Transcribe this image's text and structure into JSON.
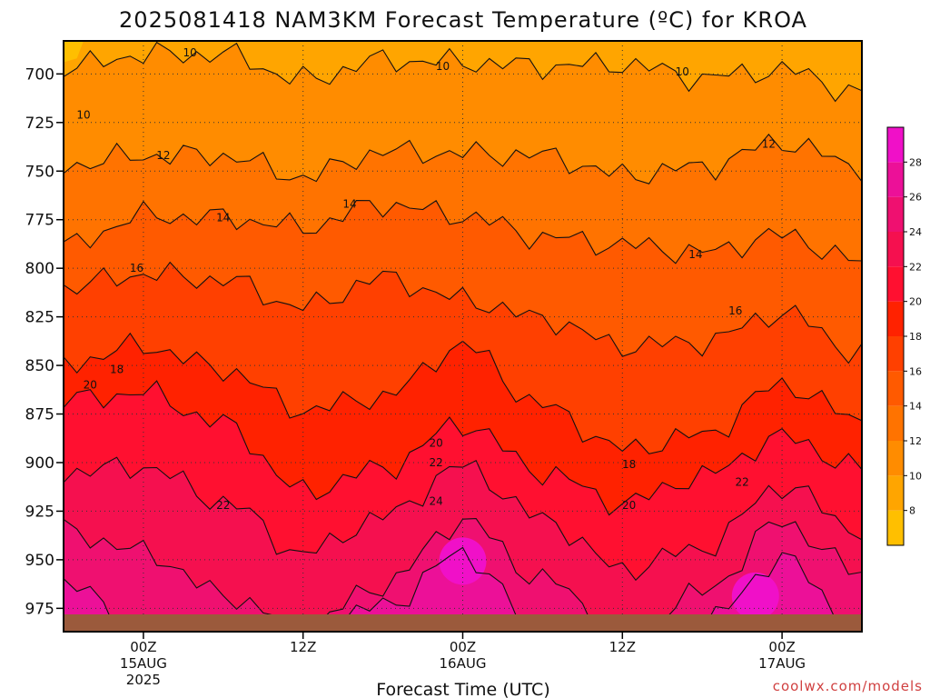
{
  "chart_data": {
    "type": "heatmap",
    "title": "2025081418 NAM3KM Forecast Temperature (ºC) for KROA",
    "xlabel": "Forecast Time (UTC)",
    "ylabel": "",
    "credit": "coolwx.com/models",
    "y_axis": {
      "ticks": [
        700,
        725,
        750,
        775,
        800,
        825,
        850,
        875,
        900,
        925,
        950,
        975
      ],
      "range": [
        683,
        987
      ],
      "inverted": true
    },
    "x_axis": {
      "range_hours": [
        -6,
        54
      ],
      "ticks": [
        {
          "hour": 0,
          "lines": [
            "00Z",
            "15AUG",
            "2025"
          ]
        },
        {
          "hour": 12,
          "lines": [
            "12Z"
          ]
        },
        {
          "hour": 24,
          "lines": [
            "00Z",
            "16AUG"
          ]
        },
        {
          "hour": 36,
          "lines": [
            "12Z"
          ]
        },
        {
          "hour": 48,
          "lines": [
            "00Z",
            "17AUG"
          ]
        }
      ]
    },
    "grid": true,
    "terrain_color": "#9b5a3c",
    "colorbar": {
      "levels": [
        6,
        8,
        10,
        12,
        14,
        16,
        18,
        20,
        22,
        24,
        26,
        28,
        30
      ],
      "labels": [
        8,
        10,
        12,
        14,
        16,
        18,
        20,
        22,
        24,
        26,
        28
      ],
      "colors": [
        "#ffbf00",
        "#ffa500",
        "#ff8c00",
        "#ff7300",
        "#ff5a00",
        "#ff4000",
        "#ff2200",
        "#ff1030",
        "#f5104f",
        "#ef1070",
        "#ec1098",
        "#f010c8"
      ]
    },
    "hours": [
      -6,
      0,
      6,
      12,
      18,
      24,
      30,
      36,
      42,
      48,
      54
    ],
    "isotherm_pressure": {
      "10": [
        697,
        690,
        690,
        703,
        693,
        694,
        696,
        695,
        702,
        698,
        710
      ],
      "12": [
        747,
        742,
        742,
        753,
        740,
        741,
        742,
        752,
        748,
        735,
        748
      ],
      "14": [
        789,
        773,
        774,
        779,
        767,
        773,
        784,
        788,
        792,
        783,
        797
      ],
      "16": [
        810,
        803,
        806,
        820,
        805,
        816,
        826,
        840,
        838,
        823,
        844
      ],
      "18": [
        849,
        840,
        852,
        873,
        866,
        840,
        871,
        893,
        886,
        860,
        878
      ],
      "20": [
        868,
        864,
        880,
        915,
        903,
        880,
        905,
        921,
        907,
        887,
        903
      ],
      "22": [
        905,
        902,
        920,
        947,
        928,
        902,
        929,
        955,
        944,
        912,
        935
      ],
      "24": [
        935,
        946,
        968,
        985,
        963,
        930,
        960,
        987,
        967,
        931,
        957
      ],
      "26": [
        962,
        987,
        987,
        987,
        974,
        947,
        987,
        987,
        983,
        950,
        985
      ]
    },
    "contour_labels": [
      {
        "value": 10,
        "hour": 3.5,
        "p": 689
      },
      {
        "value": 10,
        "hour": 22.5,
        "p": 696
      },
      {
        "value": 10,
        "hour": 40.5,
        "p": 699
      },
      {
        "value": 10,
        "hour": -4.5,
        "p": 721
      },
      {
        "value": 12,
        "hour": 1.5,
        "p": 742
      },
      {
        "value": 12,
        "hour": 47,
        "p": 736
      },
      {
        "value": 14,
        "hour": 15.5,
        "p": 767
      },
      {
        "value": 14,
        "hour": 6,
        "p": 774
      },
      {
        "value": 14,
        "hour": 41.5,
        "p": 793
      },
      {
        "value": 16,
        "hour": -0.5,
        "p": 800
      },
      {
        "value": 16,
        "hour": 44.5,
        "p": 822
      },
      {
        "value": 18,
        "hour": -2,
        "p": 852
      },
      {
        "value": 18,
        "hour": 36.5,
        "p": 901
      },
      {
        "value": 20,
        "hour": -4,
        "p": 860
      },
      {
        "value": 20,
        "hour": 22,
        "p": 890
      },
      {
        "value": 20,
        "hour": 36.5,
        "p": 922
      },
      {
        "value": 22,
        "hour": 22,
        "p": 900
      },
      {
        "value": 22,
        "hour": 45,
        "p": 910
      },
      {
        "value": 22,
        "hour": 6,
        "p": 922
      },
      {
        "value": 24,
        "hour": 22,
        "p": 920
      }
    ]
  }
}
